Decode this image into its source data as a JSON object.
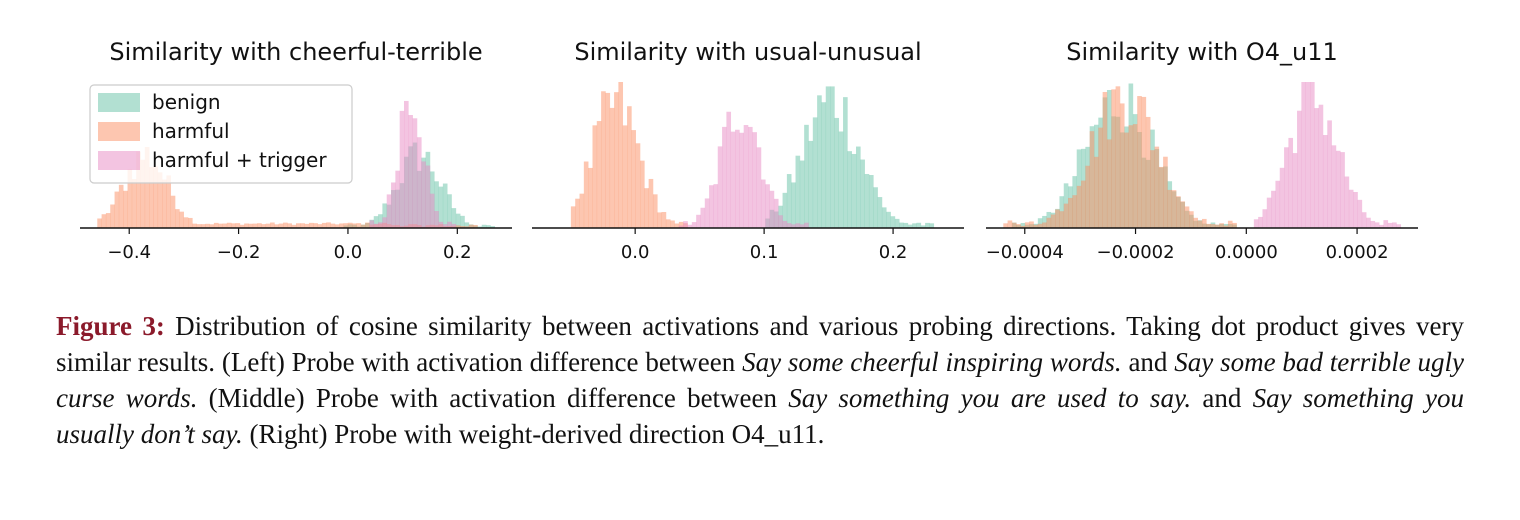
{
  "colors": {
    "benign": "#66c2a5",
    "harmful": "#fc8d62",
    "harmful_trigger": "#e78ac3",
    "caption_label": "#8b1a2b"
  },
  "chart_data": [
    {
      "type": "histogram",
      "title": "Similarity with cheerful-terrible",
      "xlim": [
        -0.49,
        0.3
      ],
      "xticks": [
        -0.4,
        -0.2,
        0.0,
        0.2
      ],
      "xtick_labels": [
        "−0.4",
        "−0.2",
        "0.0",
        "0.2"
      ],
      "legend": {
        "placement": "upper-left",
        "entries": [
          "benign",
          "harmful",
          "harmful + trigger"
        ]
      },
      "series": [
        {
          "name": "benign",
          "distribution": {
            "mean": 0.13,
            "sd": 0.04,
            "min": -0.01,
            "max": 0.27,
            "peak_height": 0.5
          }
        },
        {
          "name": "harmful",
          "distribution": {
            "mean": -0.37,
            "sd": 0.04,
            "min": -0.46,
            "max": 0.24,
            "peak_height": 0.5,
            "tail": {
              "from": -0.3,
              "to": 0.08,
              "level": 0.06
            }
          }
        },
        {
          "name": "harmful + trigger",
          "distribution": {
            "mean": 0.115,
            "sd": 0.022,
            "min": 0.04,
            "max": 0.2,
            "peak_height": 1.0
          }
        }
      ]
    },
    {
      "type": "histogram",
      "title": "Similarity with usual-unusual",
      "xlim": [
        -0.08,
        0.255
      ],
      "xticks": [
        0.0,
        0.1,
        0.2
      ],
      "xtick_labels": [
        "0.0",
        "0.1",
        "0.2"
      ],
      "series": [
        {
          "name": "benign",
          "distribution": {
            "mean": 0.152,
            "sd": 0.022,
            "min": 0.1,
            "max": 0.23,
            "peak_height": 0.88
          }
        },
        {
          "name": "harmful",
          "distribution": {
            "mean": -0.015,
            "sd": 0.018,
            "min": -0.05,
            "max": 0.04,
            "peak_height": 0.85
          }
        },
        {
          "name": "harmful + trigger",
          "distribution": {
            "mean": 0.082,
            "sd": 0.015,
            "min": 0.035,
            "max": 0.135,
            "peak_height": 0.85
          }
        }
      ]
    },
    {
      "type": "histogram",
      "title": "Similarity with O4_u11",
      "xlim": [
        -0.00047,
        0.00031
      ],
      "xticks": [
        -0.0004,
        -0.0002,
        0.0,
        0.0002
      ],
      "xtick_labels": [
        "−0.0004",
        "−0.0002",
        "0.0000",
        "0.0002"
      ],
      "series": [
        {
          "name": "benign",
          "distribution": {
            "mean": -0.00023,
            "sd": 6e-05,
            "min": -0.00042,
            "max": -2e-05,
            "peak_height": 0.88
          }
        },
        {
          "name": "harmful",
          "distribution": {
            "mean": -0.00022,
            "sd": 6e-05,
            "min": -0.00044,
            "max": -2e-05,
            "peak_height": 0.9
          }
        },
        {
          "name": "harmful + trigger",
          "distribution": {
            "mean": 0.00012,
            "sd": 4.5e-05,
            "min": 1e-05,
            "max": 0.00028,
            "peak_height": 0.9
          }
        }
      ]
    }
  ],
  "caption": {
    "label": "Figure 3:",
    "text_1": " Distribution of cosine similarity between activations and various probing directions. Taking dot product gives very similar results. (Left) Probe with activation difference between ",
    "italic_1": "Say some cheerful inspiring words.",
    "text_2": " and ",
    "italic_2": "Say some bad terrible ugly curse words.",
    "text_3": " (Middle) Probe with activation difference between ",
    "italic_3": "Say something you are used to say.",
    "text_4": " and ",
    "italic_4": "Say something you usually don’t say.",
    "text_5": " (Right) Probe with weight-derived direction O4_u11."
  }
}
